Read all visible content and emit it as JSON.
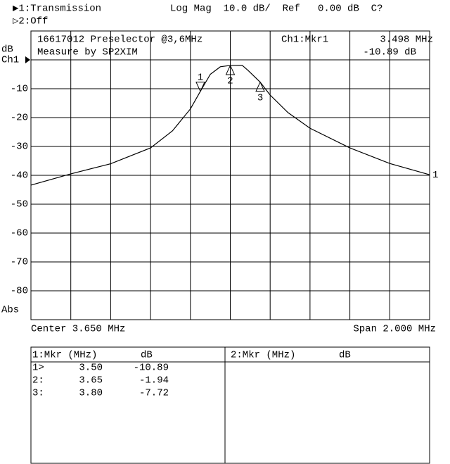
{
  "chart_data": {
    "type": "line",
    "header": {
      "channel1": "▶1:Transmission",
      "format": "Log Mag  10.0 dB/  Ref   0.00 dB  C?",
      "channel2": "▷2:Off"
    },
    "title": "16617012 Preselector @3,6MHz",
    "subtitle": "Measure by SP2XIM",
    "active_marker": {
      "name": "Ch1:Mkr1",
      "freq": "3.498 MHz",
      "level": "-10.89 dB"
    },
    "ylabel": "dB",
    "scale_note": "Abs",
    "center": "Center 3.650 MHz",
    "span": "Span 2.000 MHz",
    "xlim": [
      2.65,
      4.65
    ],
    "ylim": [
      -90,
      10
    ],
    "yticks": [
      {
        "value": 0,
        "label": "Ch1"
      },
      -10,
      -20,
      -30,
      -40,
      -50,
      -60,
      -70,
      -80
    ],
    "grid_divisions": 10,
    "color": "#000000",
    "trace_label": "1",
    "x": [
      2.65,
      2.85,
      3.05,
      3.25,
      3.36,
      3.45,
      3.5,
      3.55,
      3.6,
      3.65,
      3.71,
      3.74,
      3.8,
      3.85,
      3.94,
      4.05,
      4.25,
      4.45,
      4.65
    ],
    "values": [
      -43.4,
      -39.5,
      -36,
      -30.5,
      -24.6,
      -17,
      -10.89,
      -5,
      -2.4,
      -1.94,
      -1.9,
      -3.7,
      -7.72,
      -12.2,
      -18.3,
      -23.7,
      -30.5,
      -35.9,
      -39.8
    ],
    "markers": [
      {
        "label": "1",
        "x": 3.5,
        "y": -10.89
      },
      {
        "label": "2",
        "x": 3.65,
        "y": -1.94
      },
      {
        "label": "3",
        "x": 3.8,
        "y": -7.72
      }
    ],
    "table": {
      "left_header": [
        "1:Mkr (MHz)",
        "dB"
      ],
      "right_header": [
        "2:Mkr (MHz)",
        "dB"
      ],
      "rows": [
        [
          "1>",
          "3.50",
          "-10.89"
        ],
        [
          "2:",
          "3.65",
          "-1.94"
        ],
        [
          "3:",
          "3.80",
          "-7.72"
        ]
      ]
    }
  }
}
